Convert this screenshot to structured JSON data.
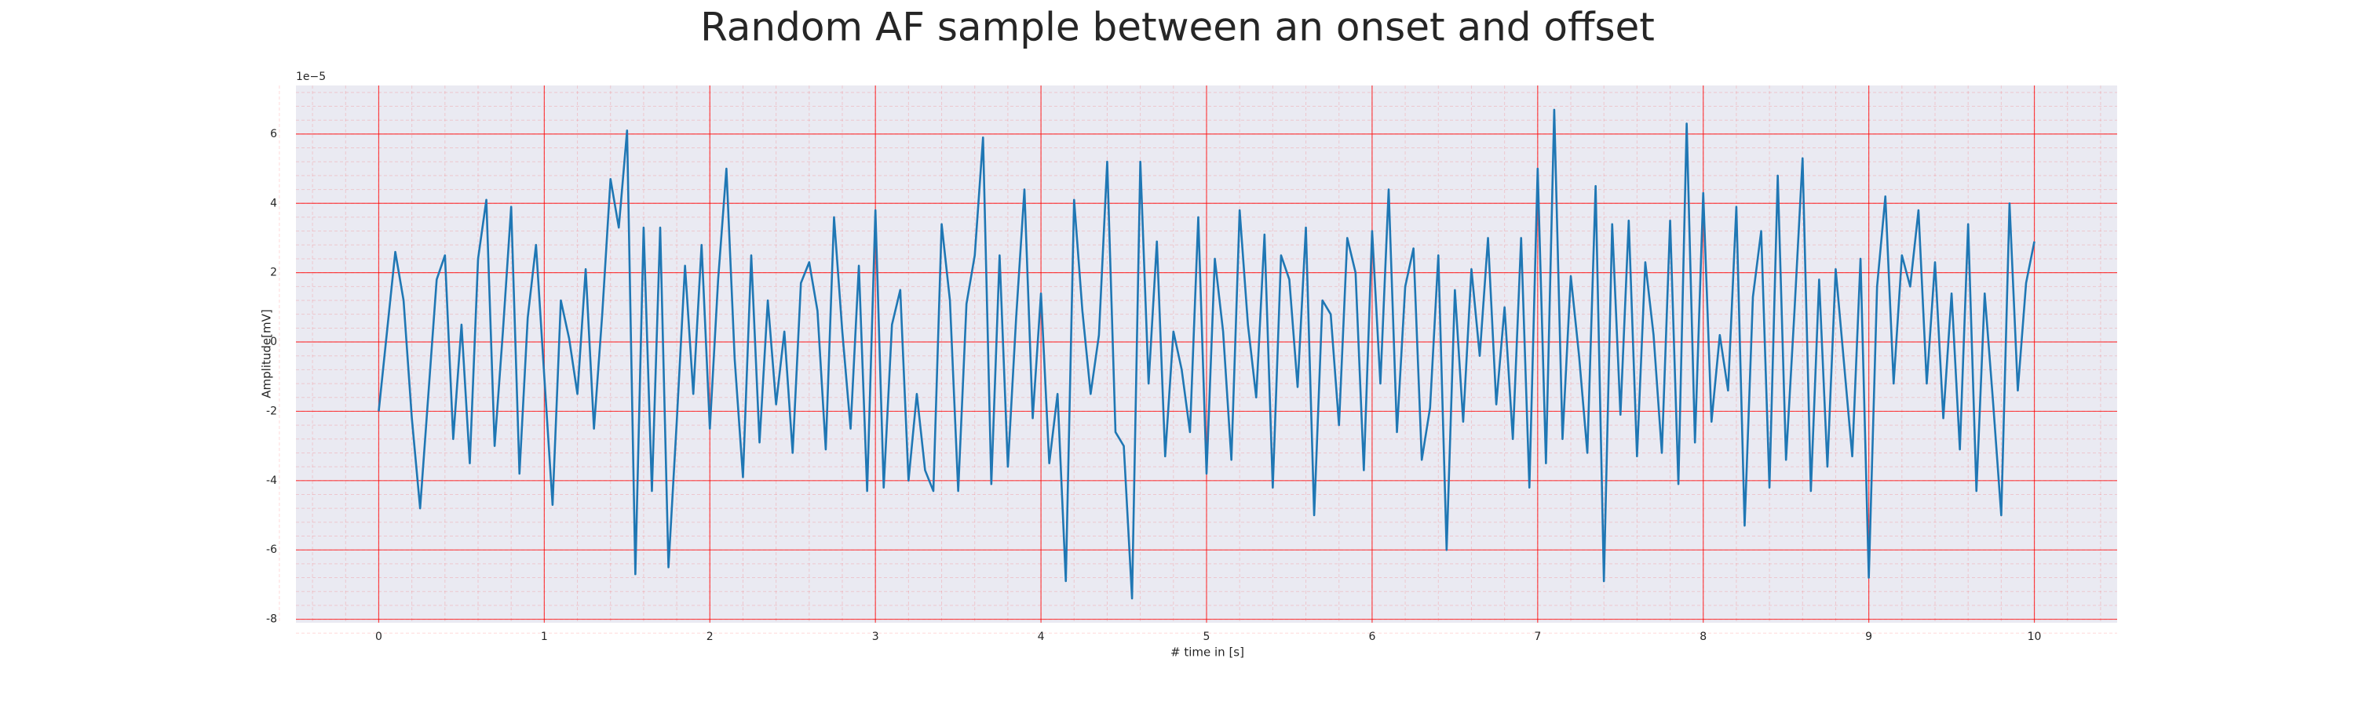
{
  "chart_data": {
    "type": "line",
    "title": "Random AF sample between an onset and offset",
    "x_label": "# time in [s]",
    "y_label": "Amplitude[mV]",
    "y_offset_label": "1e−5",
    "xlim": [
      -0.5,
      10.5
    ],
    "ylim": [
      -8.1,
      7.4
    ],
    "xticks": [
      0,
      1,
      2,
      3,
      4,
      5,
      6,
      7,
      8,
      9,
      10
    ],
    "yticks": [
      -8,
      -6,
      -4,
      -2,
      0,
      2,
      4,
      6
    ],
    "grid": true,
    "grid_color": "#ff0000",
    "minor_grid": true,
    "background": "#eaeaf2",
    "x": [
      0,
      0.05,
      0.1,
      0.15,
      0.2,
      0.25,
      0.3,
      0.35,
      0.4,
      0.45,
      0.5,
      0.55,
      0.6,
      0.65,
      0.7,
      0.75,
      0.8,
      0.85,
      0.9,
      0.95,
      1,
      1.05,
      1.1,
      1.15,
      1.2,
      1.25,
      1.3,
      1.35,
      1.4,
      1.45,
      1.5,
      1.55,
      1.6,
      1.65,
      1.7,
      1.75,
      1.8,
      1.85,
      1.9,
      1.95,
      2,
      2.05,
      2.1,
      2.15,
      2.2,
      2.25,
      2.3,
      2.35,
      2.4,
      2.45,
      2.5,
      2.55,
      2.6,
      2.65,
      2.7,
      2.75,
      2.8,
      2.85,
      2.9,
      2.95,
      3,
      3.05,
      3.1,
      3.15,
      3.2,
      3.25,
      3.3,
      3.35,
      3.4,
      3.45,
      3.5,
      3.55,
      3.6,
      3.65,
      3.7,
      3.75,
      3.8,
      3.85,
      3.9,
      3.95,
      4,
      4.05,
      4.1,
      4.15,
      4.2,
      4.25,
      4.3,
      4.35,
      4.4,
      4.45,
      4.5,
      4.55,
      4.6,
      4.65,
      4.7,
      4.75,
      4.8,
      4.85,
      4.9,
      4.95,
      5,
      5.05,
      5.1,
      5.15,
      5.2,
      5.25,
      5.3,
      5.35,
      5.4,
      5.45,
      5.5,
      5.55,
      5.6,
      5.65,
      5.7,
      5.75,
      5.8,
      5.85,
      5.9,
      5.95,
      6,
      6.05,
      6.1,
      6.15,
      6.2,
      6.25,
      6.3,
      6.35,
      6.4,
      6.45,
      6.5,
      6.55,
      6.6,
      6.65,
      6.7,
      6.75,
      6.8,
      6.85,
      6.9,
      6.95,
      7,
      7.05,
      7.1,
      7.15,
      7.2,
      7.25,
      7.3,
      7.35,
      7.4,
      7.45,
      7.5,
      7.55,
      7.6,
      7.65,
      7.7,
      7.75,
      7.8,
      7.85,
      7.9,
      7.95,
      8,
      8.05,
      8.1,
      8.15,
      8.2,
      8.25,
      8.3,
      8.35,
      8.4,
      8.45,
      8.5,
      8.55,
      8.6,
      8.65,
      8.7,
      8.75,
      8.8,
      8.85,
      8.9,
      8.95,
      9,
      9.05,
      9.1,
      9.15,
      9.2,
      9.25,
      9.3,
      9.35,
      9.4,
      9.45,
      9.5,
      9.55,
      9.6,
      9.65,
      9.7,
      9.75,
      9.8,
      9.85,
      9.9,
      9.95,
      10
    ],
    "series": [
      {
        "color": "#1f77b4",
        "values": [
          -2,
          0.3,
          2.6,
          1.2,
          -2.2,
          -4.8,
          -1.5,
          1.8,
          2.5,
          -2.8,
          0.5,
          -3.5,
          2.4,
          4.1,
          -3,
          0.3,
          3.9,
          -3.8,
          0.7,
          2.8,
          -1,
          -4.7,
          1.2,
          0.1,
          -1.5,
          2.1,
          -2.5,
          0.8,
          4.7,
          3.3,
          6.1,
          -6.7,
          3.3,
          -4.3,
          3.3,
          -6.5,
          -2.3,
          2.2,
          -1.5,
          2.8,
          -2.5,
          1.8,
          5,
          -0.5,
          -3.9,
          2.5,
          -2.9,
          1.2,
          -1.8,
          0.3,
          -3.2,
          1.7,
          2.3,
          0.9,
          -3.1,
          3.6,
          0.3,
          -2.5,
          2.2,
          -4.3,
          3.8,
          -4.2,
          0.5,
          1.5,
          -4,
          -1.5,
          -3.7,
          -4.3,
          3.4,
          1.2,
          -4.3,
          1.1,
          2.5,
          5.9,
          -4.1,
          2.5,
          -3.6,
          0.7,
          4.4,
          -2.2,
          1.4,
          -3.5,
          -1.5,
          -6.9,
          4.1,
          0.9,
          -1.5,
          0.2,
          5.2,
          -2.6,
          -3,
          -7.4,
          5.2,
          -1.2,
          2.9,
          -3.3,
          0.3,
          -0.8,
          -2.6,
          3.6,
          -3.8,
          2.4,
          0.3,
          -3.4,
          3.8,
          0.5,
          -1.6,
          3.1,
          -4.2,
          2.5,
          1.8,
          -1.3,
          3.3,
          -5,
          1.2,
          0.8,
          -2.4,
          3,
          2,
          -3.7,
          3.2,
          -1.2,
          4.4,
          -2.6,
          1.6,
          2.7,
          -3.4,
          -1.9,
          2.5,
          -6,
          1.5,
          -2.3,
          2.1,
          -0.4,
          3,
          -1.8,
          1,
          -2.8,
          3,
          -4.2,
          5,
          -3.5,
          6.7,
          -2.8,
          1.9,
          -0.4,
          -3.2,
          4.5,
          -6.9,
          3.4,
          -2.1,
          3.5,
          -3.3,
          2.3,
          0.2,
          -3.2,
          3.5,
          -4.1,
          6.3,
          -2.9,
          4.3,
          -2.3,
          0.2,
          -1.4,
          3.9,
          -5.3,
          1.3,
          3.2,
          -4.2,
          4.8,
          -3.4,
          0.8,
          5.3,
          -4.3,
          1.8,
          -3.6,
          2.1,
          -0.6,
          -3.3,
          2.4,
          -6.8,
          1.6,
          4.2,
          -1.2,
          2.5,
          1.6,
          3.8,
          -1.2,
          2.3,
          -2.2,
          1.4,
          -3.1,
          3.4,
          -4.3,
          1.4,
          -1.7,
          -5,
          4,
          -1.4,
          1.7,
          2.9
        ]
      }
    ]
  }
}
